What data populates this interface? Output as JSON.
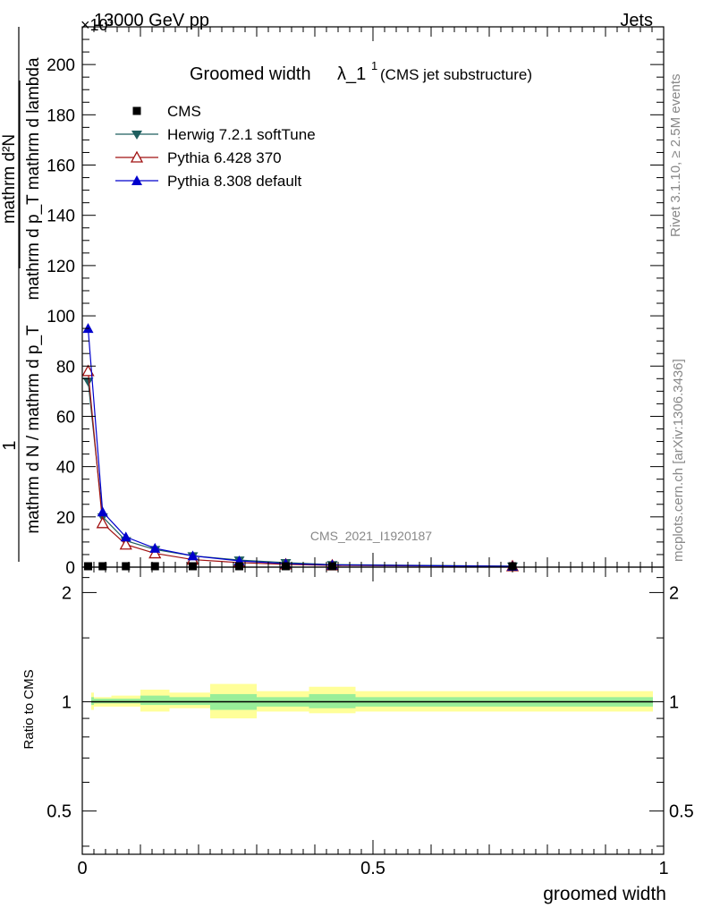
{
  "header": {
    "energy": "13000 GeV pp",
    "category": "Jets",
    "exponent": "×10³",
    "title_main": "Groomed width",
    "title_lambda": "λ_1",
    "title_sup": "1",
    "title_sub": "(CMS jet substructure)",
    "watermark": "CMS_2021_I1920187",
    "side_rivet": "Rivet 3.1.10, ≥ 2.5M events",
    "side_mcplots": "mcplots.cern.ch [arXiv:1306.3436]"
  },
  "axes": {
    "ylabel_num": "1",
    "ylabel_den": "mathrm d N / mathrm d p_T",
    "ylabel_frac_num": "mathrm d²N",
    "ylabel_frac_den": "mathrm d p_T mathrm d lambda",
    "xlabel": "groomed width",
    "ratio_ylabel": "Ratio to CMS"
  },
  "colors": {
    "cms": "#000000",
    "herwig": "#1f5f5f",
    "pythia6": "#a01010",
    "pythia8": "#0000cc",
    "band_inner": "#99ee99",
    "band_outer": "#ffff99"
  },
  "chart_data": [
    {
      "type": "line",
      "panel": "main",
      "xlim": [
        0,
        1
      ],
      "ylim": [
        0,
        215
      ],
      "y_multiplier": 1000,
      "yticks": [
        0,
        20,
        40,
        60,
        80,
        100,
        120,
        140,
        160,
        180,
        200
      ],
      "legend": "top-left",
      "series": [
        {
          "name": "CMS",
          "marker": "square",
          "x": [
            0.01,
            0.035,
            0.075,
            0.125,
            0.19,
            0.27,
            0.35,
            0.43,
            0.74
          ],
          "y": [
            0.6,
            0.5,
            0.4,
            0.3,
            0.2,
            0.15,
            0.1,
            0.08,
            0.3
          ]
        },
        {
          "name": "Herwig 7.2.1 softTune",
          "marker": "triangle-down",
          "x": [
            0.01,
            0.035,
            0.075,
            0.125,
            0.19,
            0.27,
            0.35,
            0.43,
            0.74
          ],
          "y": [
            74,
            20,
            10.5,
            7,
            4.5,
            2.8,
            1.8,
            1.0,
            0.4
          ]
        },
        {
          "name": "Pythia 6.428 370",
          "marker": "triangle-up-open",
          "x": [
            0.01,
            0.035,
            0.075,
            0.125,
            0.19,
            0.27,
            0.35,
            0.43,
            0.74
          ],
          "y": [
            78,
            17.5,
            9,
            5.5,
            3,
            1.8,
            1.1,
            0.7,
            0.3
          ]
        },
        {
          "name": "Pythia 8.308 default",
          "marker": "triangle-up",
          "x": [
            0.01,
            0.035,
            0.075,
            0.125,
            0.19,
            0.27,
            0.35,
            0.43,
            0.74
          ],
          "y": [
            95,
            22,
            12,
            7.5,
            4.5,
            2.5,
            1.4,
            0.9,
            0.3
          ]
        }
      ]
    },
    {
      "type": "area",
      "panel": "ratio",
      "xlim": [
        0,
        1
      ],
      "ylim": [
        0.38,
        2.35
      ],
      "log_y": true,
      "yticks": [
        0.5,
        1,
        2
      ],
      "reference": 1,
      "bins": [
        {
          "x0": 0.0,
          "x1": 0.02,
          "inner": [
            0.98,
            1.03
          ],
          "outer": [
            0.95,
            1.06
          ]
        },
        {
          "x0": 0.02,
          "x1": 0.05,
          "inner": [
            0.99,
            1.02
          ],
          "outer": [
            0.97,
            1.03
          ]
        },
        {
          "x0": 0.05,
          "x1": 0.1,
          "inner": [
            0.99,
            1.02
          ],
          "outer": [
            0.97,
            1.04
          ]
        },
        {
          "x0": 0.1,
          "x1": 0.15,
          "inner": [
            0.98,
            1.04
          ],
          "outer": [
            0.94,
            1.08
          ]
        },
        {
          "x0": 0.15,
          "x1": 0.22,
          "inner": [
            0.98,
            1.03
          ],
          "outer": [
            0.96,
            1.06
          ]
        },
        {
          "x0": 0.22,
          "x1": 0.3,
          "inner": [
            0.95,
            1.05
          ],
          "outer": [
            0.9,
            1.12
          ]
        },
        {
          "x0": 0.3,
          "x1": 0.39,
          "inner": [
            0.97,
            1.03
          ],
          "outer": [
            0.94,
            1.07
          ]
        },
        {
          "x0": 0.39,
          "x1": 0.47,
          "inner": [
            0.96,
            1.05
          ],
          "outer": [
            0.93,
            1.1
          ]
        },
        {
          "x0": 0.47,
          "x1": 1.0,
          "inner": [
            0.97,
            1.03
          ],
          "outer": [
            0.94,
            1.07
          ]
        }
      ]
    }
  ]
}
